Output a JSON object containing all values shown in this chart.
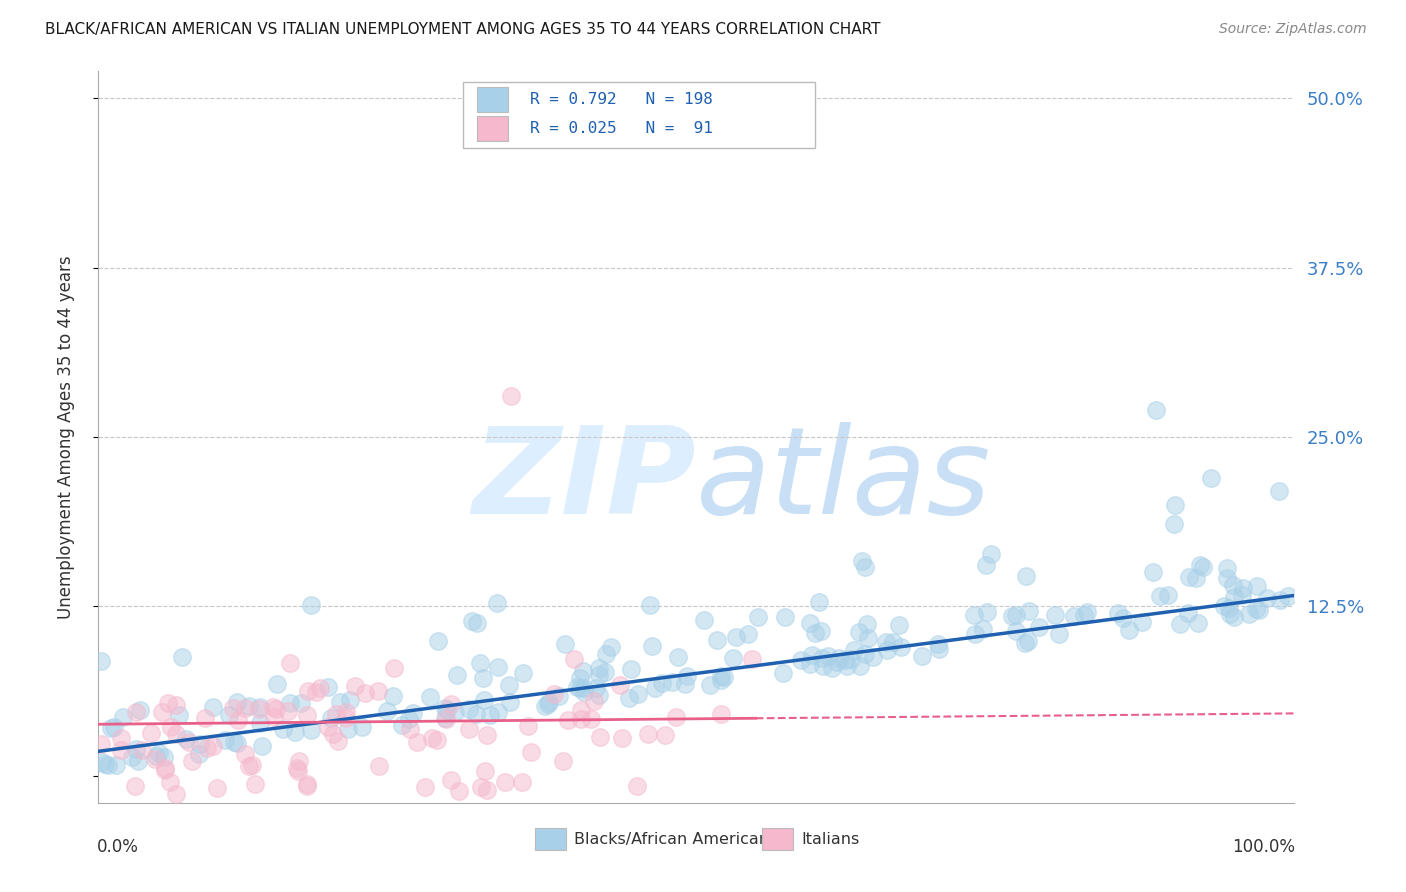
{
  "title": "BLACK/AFRICAN AMERICAN VS ITALIAN UNEMPLOYMENT AMONG AGES 35 TO 44 YEARS CORRELATION CHART",
  "source": "Source: ZipAtlas.com",
  "ylabel": "Unemployment Among Ages 35 to 44 years",
  "legend_label1": "Blacks/African Americans",
  "legend_label2": "Italians",
  "R1": 0.792,
  "N1": 198,
  "R2": 0.025,
  "N2": 91,
  "color_blue": "#a8d0e8",
  "color_pink": "#f5b8cc",
  "color_blue_line": "#2060b0",
  "color_pink_line": "#e8608a",
  "watermark_color": "#ddeeff",
  "background_color": "#ffffff",
  "grid_color": "#c8c8c8",
  "ytick_values": [
    0.0,
    0.125,
    0.25,
    0.375,
    0.5
  ],
  "ytick_labels": [
    "",
    "12.5%",
    "25.0%",
    "37.5%",
    "50.0%"
  ],
  "xlim": [
    0.0,
    1.0
  ],
  "ylim": [
    -0.02,
    0.52
  ],
  "blue_intercept": 0.018,
  "blue_slope": 0.115,
  "pink_intercept": 0.038,
  "pink_slope": 0.008,
  "seed": 12
}
